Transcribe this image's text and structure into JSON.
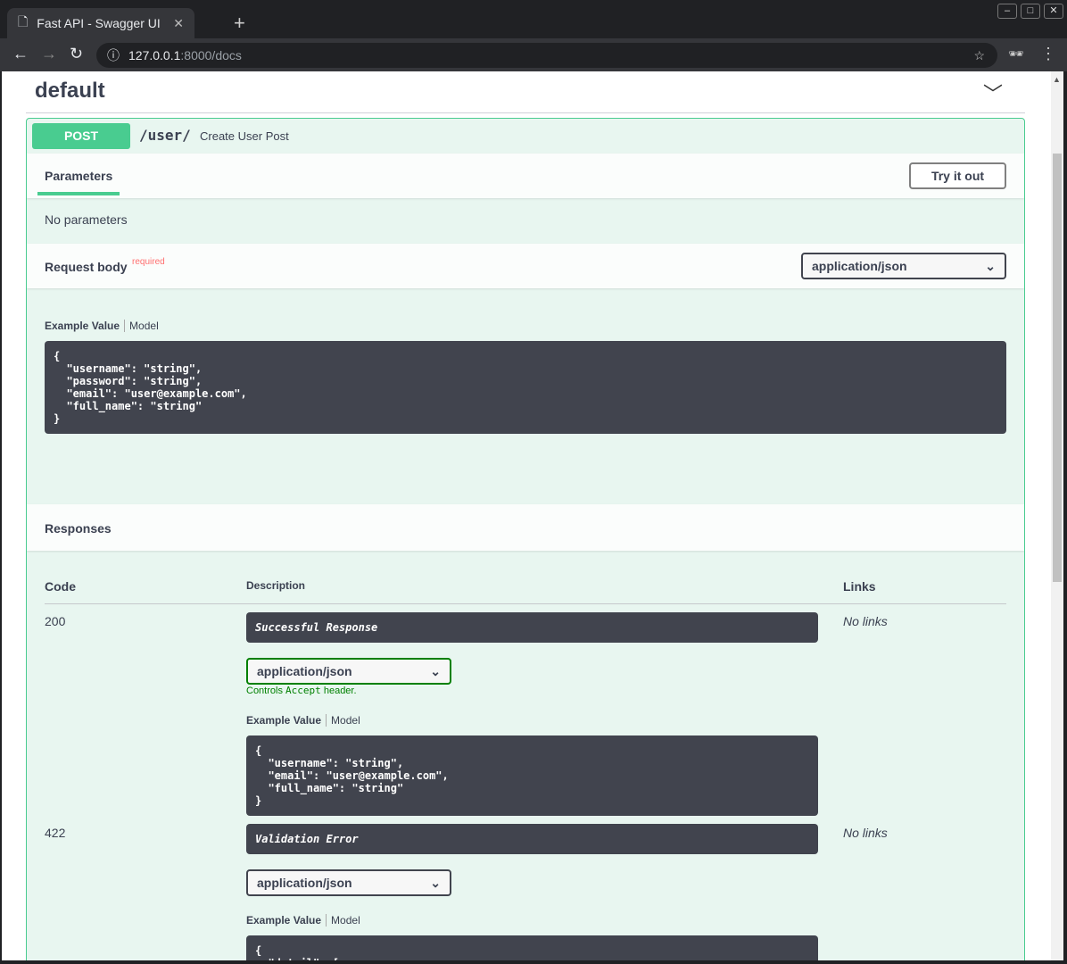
{
  "browser": {
    "tab_title": "Fast API - Swagger UI",
    "url_host": "127.0.0.1",
    "url_rest": ":8000/docs"
  },
  "section": {
    "title": "default"
  },
  "operation": {
    "method": "POST",
    "path": "/user/",
    "summary": "Create User Post"
  },
  "parameters": {
    "heading": "Parameters",
    "try_label": "Try it out",
    "empty": "No parameters"
  },
  "request_body": {
    "label": "Request body",
    "required": "required",
    "content_type": "application/json",
    "example_tab": "Example Value",
    "model_tab": "Model",
    "example": "{\n  \"username\": \"string\",\n  \"password\": \"string\",\n  \"email\": \"user@example.com\",\n  \"full_name\": \"string\"\n}"
  },
  "responses": {
    "heading": "Responses",
    "col_code": "Code",
    "col_desc": "Description",
    "col_links": "Links",
    "items": [
      {
        "code": "200",
        "description": "Successful Response",
        "content_type": "application/json",
        "hint_pre": "Controls ",
        "hint_code": "Accept",
        "hint_post": " header.",
        "example_tab": "Example Value",
        "model_tab": "Model",
        "links": "No links",
        "example": "{\n  \"username\": \"string\",\n  \"email\": \"user@example.com\",\n  \"full_name\": \"string\"\n}"
      },
      {
        "code": "422",
        "description": "Validation Error",
        "content_type": "application/json",
        "example_tab": "Example Value",
        "model_tab": "Model",
        "links": "No links",
        "example": "{\n  \"detail\": ["
      }
    ]
  },
  "colors": {
    "post": "#49cc90",
    "text": "#3b4151",
    "code_bg": "#41444e",
    "required": "#ff6f6f"
  }
}
